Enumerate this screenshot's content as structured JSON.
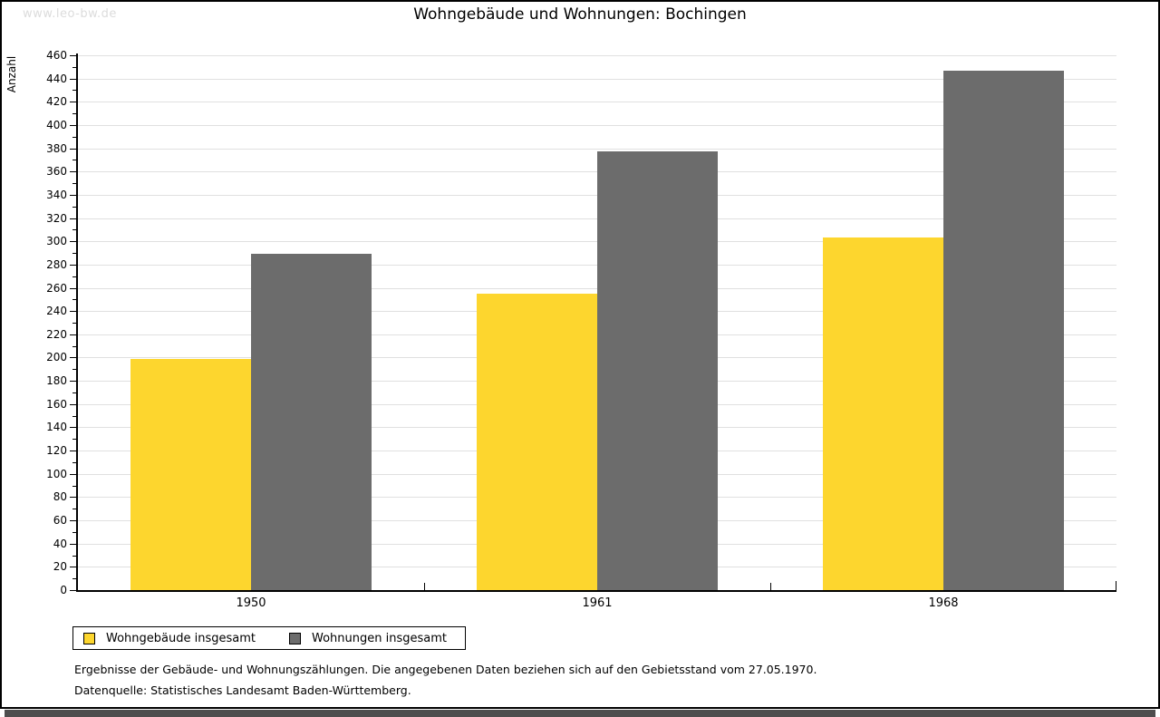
{
  "site": {
    "watermark": "www.leo-bw.de"
  },
  "chart_data": {
    "type": "bar",
    "title": "Wohngebäude und Wohnungen: Bochingen",
    "xlabel": "",
    "ylabel": "Anzahl",
    "categories": [
      "1950",
      "1961",
      "1968"
    ],
    "series": [
      {
        "name": "Wohngebäude insgesamt",
        "color": "#FDD62E",
        "values": [
          199,
          255,
          303
        ]
      },
      {
        "name": "Wohnungen insgesamt",
        "color": "#6C6C6C",
        "values": [
          289,
          377,
          447
        ]
      }
    ],
    "ylim": [
      0,
      460
    ],
    "ytick_step": 20,
    "ytick_minor_step": 10,
    "grid": true,
    "gridline_color": "#e0e0e0",
    "legend_position": "bottom-left"
  },
  "footnotes": {
    "line1": "Ergebnisse der Gebäude- und Wohnungszählungen. Die angegebenen Daten beziehen sich auf den Gebietsstand vom 27.05.1970.",
    "line2": "Datenquelle: Statistisches Landesamt Baden-Württemberg."
  }
}
